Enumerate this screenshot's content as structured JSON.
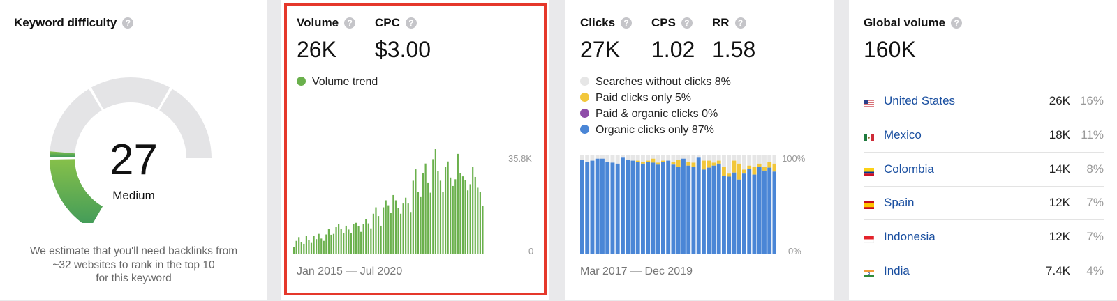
{
  "keyword_difficulty": {
    "label": "Keyword difficulty",
    "score": "27",
    "score_value": 27,
    "level": "Medium",
    "description_lines": [
      "We estimate that you'll need backlinks from",
      "~32 websites to rank in the top 10",
      "for this keyword"
    ]
  },
  "volume": {
    "label": "Volume",
    "value": "26K",
    "cpc_label": "CPC",
    "cpc_value": "$3.00",
    "legend": "Volume trend",
    "range": "Jan 2015 — Jul 2020",
    "y_max_label": "35.8K",
    "y_min_label": "0"
  },
  "clicks": {
    "clicks_label": "Clicks",
    "clicks_value": "27K",
    "cps_label": "CPS",
    "cps_value": "1.02",
    "rr_label": "RR",
    "rr_value": "1.58",
    "legend": [
      {
        "label": "Searches without clicks 8%",
        "color": "#e6e6e6"
      },
      {
        "label": "Paid clicks only 5%",
        "color": "#f2c73b"
      },
      {
        "label": "Paid & organic clicks 0%",
        "color": "#8e4ca8"
      },
      {
        "label": "Organic clicks only 87%",
        "color": "#4a86d6"
      }
    ],
    "range": "Mar 2017 — Dec 2019",
    "y_max_label": "100%",
    "y_min_label": "0%"
  },
  "global": {
    "label": "Global volume",
    "value": "160K",
    "countries": [
      {
        "name": "United States",
        "volume": "26K",
        "percent": "16%",
        "flag": "us"
      },
      {
        "name": "Mexico",
        "volume": "18K",
        "percent": "11%",
        "flag": "mx"
      },
      {
        "name": "Colombia",
        "volume": "14K",
        "percent": "8%",
        "flag": "co"
      },
      {
        "name": "Spain",
        "volume": "12K",
        "percent": "7%",
        "flag": "es"
      },
      {
        "name": "Indonesia",
        "volume": "12K",
        "percent": "7%",
        "flag": "id"
      },
      {
        "name": "India",
        "volume": "7.4K",
        "percent": "4%",
        "flag": "in"
      }
    ]
  },
  "colors": {
    "green": "#6ab04c",
    "blue": "#4a86d6",
    "yellow": "#f2c73b",
    "gray": "#e6e6e6",
    "highlight": "#e5382b"
  },
  "chart_data": [
    {
      "type": "bar",
      "series": [
        {
          "name": "Volume trend",
          "values": [
            2.5,
            4.6,
            5.9,
            4.2,
            3.6,
            6.3,
            4.9,
            3.9,
            6.3,
            5.2,
            7.0,
            5.4,
            4.6,
            6.8,
            8.8,
            6.7,
            7.0,
            9.3,
            10.4,
            8.8,
            7.4,
            9.8,
            8.5,
            7.2,
            10.4,
            10.8,
            9.6,
            7.7,
            10.4,
            12.1,
            10.6,
            8.9,
            13.9,
            16.1,
            13.1,
            9.8,
            16.1,
            18.5,
            16.8,
            14.2,
            20.3,
            18.5,
            15.9,
            13.9,
            17.4,
            19.4,
            17.4,
            14.5,
            25.2,
            29.1,
            21.4,
            19.6,
            27.8,
            31.1,
            24.6,
            21.1,
            32.6,
            36.1,
            28.4,
            25.2,
            21.4,
            30.0,
            31.8,
            26.3,
            23.4,
            25.7,
            34.4,
            27.8,
            26.7,
            25.4,
            21.9,
            24.0,
            30.0,
            26.5,
            22.8,
            21.4,
            16.5
          ]
        }
      ],
      "ylim": [
        0,
        35.8
      ]
    },
    {
      "type": "bar",
      "stacked": true,
      "series": [
        {
          "name": "Organic clicks only",
          "values": [
            95,
            93,
            94,
            96,
            96,
            93,
            92,
            91,
            97,
            95,
            94,
            93,
            91,
            93,
            92,
            90,
            93,
            94,
            90,
            88,
            96,
            89,
            88,
            97,
            85,
            87,
            89,
            91,
            79,
            78,
            82,
            75,
            81,
            86,
            80,
            88,
            84,
            87,
            83,
            93
          ]
        },
        {
          "name": "Paid clicks only",
          "values": [
            0,
            0,
            0,
            0,
            0,
            0,
            0,
            0,
            0,
            0,
            0,
            1,
            2,
            1,
            4,
            2,
            1,
            0,
            3,
            7,
            0,
            4,
            4,
            0,
            9,
            7,
            3,
            3,
            9,
            3,
            12,
            16,
            4,
            3,
            8,
            3,
            4,
            6,
            8,
            2
          ]
        },
        {
          "name": "Searches without clicks",
          "values": [
            5,
            7,
            6,
            4,
            4,
            7,
            8,
            9,
            3,
            5,
            6,
            6,
            7,
            6,
            4,
            8,
            6,
            6,
            7,
            5,
            4,
            7,
            8,
            3,
            6,
            6,
            8,
            6,
            12,
            19,
            6,
            9,
            15,
            11,
            12,
            9,
            12,
            7,
            9,
            5
          ]
        }
      ],
      "ylim": [
        0,
        100
      ]
    }
  ]
}
